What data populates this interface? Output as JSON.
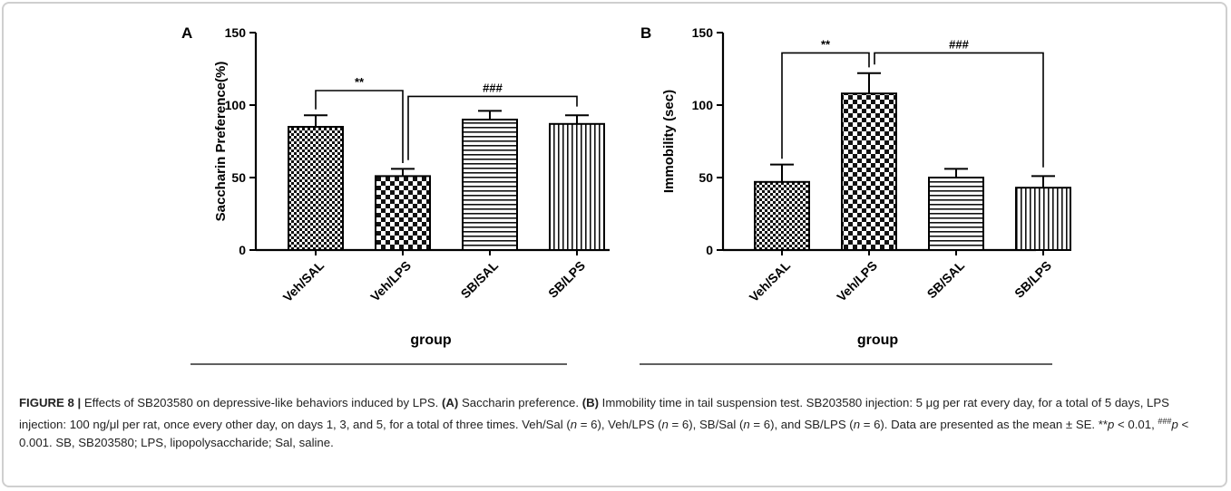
{
  "chart_data": [
    {
      "type": "bar",
      "panel": "A",
      "categories": [
        "Veh/SAL",
        "Veh/LPS",
        "SB/SAL",
        "SB/LPS"
      ],
      "values": [
        85,
        51,
        90,
        87
      ],
      "errors": [
        8,
        5,
        6,
        6
      ],
      "patterns": [
        "checker-fine",
        "checker-coarse",
        "horizontal-stripes",
        "vertical-stripes"
      ],
      "xlabel": "group",
      "ylabel": "Saccharin Preference(%)",
      "ylim": [
        0,
        150
      ],
      "yticks": [
        0,
        50,
        100,
        150
      ],
      "annotations": [
        {
          "from": 0,
          "to": 1,
          "label": "**"
        },
        {
          "from": 1,
          "to": 3,
          "label": "###"
        }
      ]
    },
    {
      "type": "bar",
      "panel": "B",
      "categories": [
        "Veh/SAL",
        "Veh/LPS",
        "SB/SAL",
        "SB/LPS"
      ],
      "values": [
        47,
        108,
        50,
        43
      ],
      "errors": [
        12,
        14,
        6,
        8
      ],
      "patterns": [
        "checker-fine",
        "checker-coarse",
        "horizontal-stripes",
        "vertical-stripes"
      ],
      "xlabel": "group",
      "ylabel": "Immobility (sec)",
      "ylim": [
        0,
        150
      ],
      "yticks": [
        0,
        50,
        100,
        150
      ],
      "annotations": [
        {
          "from": 0,
          "to": 1,
          "label": "**"
        },
        {
          "from": 1,
          "to": 3,
          "label": "###"
        }
      ]
    }
  ],
  "caption": {
    "figure_label": "FIGURE 8 |",
    "t1": " Effects of SB203580 on depressive-like behaviors induced by LPS. ",
    "a_label": "(A)",
    "t2": " Saccharin preference. ",
    "b_label": "(B)",
    "t3": " Immobility time in tail suspension test. SB203580 injection: 5 μg per rat every day, for a total of 5 days, LPS injection: 100 ng/μl per rat, once every other day, on days 1, 3, and 5, for a total of three times. Veh/Sal (",
    "n": "n",
    "eq1": " = 6), Veh/LPS (",
    "eq2": " = 6), SB/Sal (",
    "eq3": " = 6), and SB/LPS (",
    "t4": " = 6). Data are presented as the mean ± SE. **",
    "p": "p",
    "t5": " < 0.01, ",
    "sup": "###",
    "t6": " < 0.001. SB, SB203580; LPS, lipopolysaccharide; Sal, saline."
  }
}
